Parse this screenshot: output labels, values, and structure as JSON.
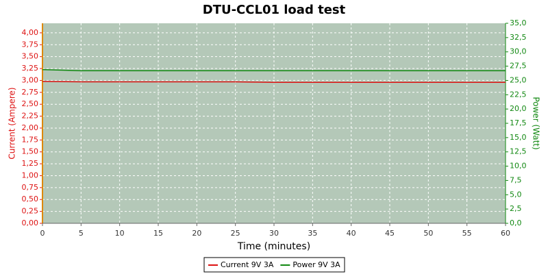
{
  "chart_data": {
    "type": "line",
    "title": "DTU-CCL01 load test",
    "x_label": "Time (minutes)",
    "y_label": "Current (Ampere)",
    "y2_label": "Power (Watt)",
    "x": [
      0,
      5,
      10,
      15,
      20,
      25,
      30,
      35,
      40,
      45,
      50,
      55,
      60
    ],
    "series": [
      {
        "name": "Current 9V 3A",
        "color": "#dd1111",
        "values": [
          2.98,
          2.97,
          2.97,
          2.97,
          2.97,
          2.97,
          2.96,
          2.96,
          2.96,
          2.96,
          2.96,
          2.96,
          2.96
        ]
      },
      {
        "name": "Power 9V 3A",
        "color": "#118811",
        "axis": "y2",
        "values": [
          26.9,
          26.7,
          26.7,
          26.7,
          26.7,
          26.7,
          26.7,
          26.7,
          26.7,
          26.7,
          26.7,
          26.7,
          26.7
        ]
      }
    ],
    "xlim": [
      0,
      60
    ],
    "xticks": [
      0,
      5,
      10,
      15,
      20,
      25,
      30,
      35,
      40,
      45,
      50,
      55,
      60
    ],
    "ylim": [
      0,
      4.2
    ],
    "yticks": [
      {
        "value": 0,
        "label": "0,00"
      },
      {
        "value": 0.25,
        "label": "0,25"
      },
      {
        "value": 0.5,
        "label": "0,50"
      },
      {
        "value": 0.75,
        "label": "0,75"
      },
      {
        "value": 1,
        "label": "1,00"
      },
      {
        "value": 1.25,
        "label": "1,25"
      },
      {
        "value": 1.5,
        "label": "1,50"
      },
      {
        "value": 1.75,
        "label": "1,75"
      },
      {
        "value": 2,
        "label": "2,00"
      },
      {
        "value": 2.25,
        "label": "2,25"
      },
      {
        "value": 2.5,
        "label": "2,50"
      },
      {
        "value": 2.75,
        "label": "2,75"
      },
      {
        "value": 3,
        "label": "3,00"
      },
      {
        "value": 3.25,
        "label": "3,25"
      },
      {
        "value": 3.5,
        "label": "3,50"
      },
      {
        "value": 3.75,
        "label": "3,75"
      },
      {
        "value": 4,
        "label": "4,00"
      }
    ],
    "y2lim": [
      0,
      35
    ],
    "y2ticks": [
      {
        "value": 0,
        "label": "0,0"
      },
      {
        "value": 2.5,
        "label": "2,5"
      },
      {
        "value": 5,
        "label": "5,0"
      },
      {
        "value": 7.5,
        "label": "7,5"
      },
      {
        "value": 10,
        "label": "10,0"
      },
      {
        "value": 12.5,
        "label": "12,5"
      },
      {
        "value": 15,
        "label": "15,0"
      },
      {
        "value": 17.5,
        "label": "17,5"
      },
      {
        "value": 20,
        "label": "20,0"
      },
      {
        "value": 22.5,
        "label": "22,5"
      },
      {
        "value": 25,
        "label": "25,0"
      },
      {
        "value": 27.5,
        "label": "27,5"
      },
      {
        "value": 30,
        "label": "30,0"
      },
      {
        "value": 32.5,
        "label": "32,5"
      },
      {
        "value": 35,
        "label": "35,0"
      }
    ],
    "grid": true
  }
}
